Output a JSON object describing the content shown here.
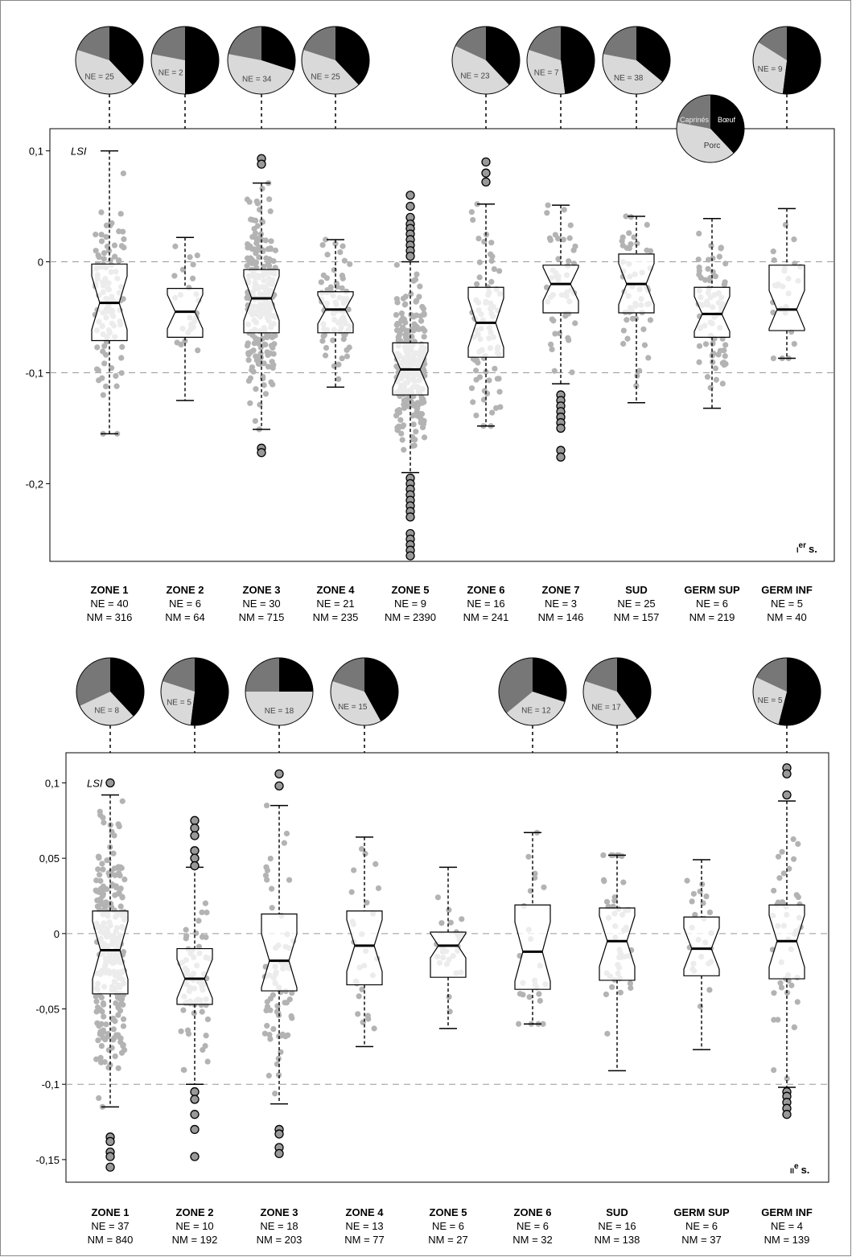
{
  "figure": {
    "label_axis": "LSI"
  },
  "pie_legend": {
    "labels": [
      "Caprinés",
      "Bœuf",
      "Porc"
    ]
  },
  "colors": {
    "caprines": "#777777",
    "boeuf": "#000000",
    "porc": "#d9d9d9",
    "points": "#b3b3b3",
    "box_fill": "#ffffff",
    "outlier_fill": "#999999",
    "grid": "#999999"
  },
  "chart_data": [
    {
      "type": "boxplot",
      "period_label": {
        "roman": "I",
        "suffix": "er",
        "text": "s."
      },
      "ylim": [
        -0.27,
        0.12
      ],
      "yticks": [
        0.1,
        0,
        -0.1,
        -0.2
      ],
      "ytick_labels": [
        "0,1",
        "0",
        "-0,1",
        "-0,2"
      ],
      "reference_lines": [
        0,
        -0.1
      ],
      "groups": [
        {
          "name": "ZONE 1",
          "ne": "NE = 40",
          "nm": "NM = 316",
          "whisker_low": -0.155,
          "q1": -0.071,
          "median": -0.037,
          "q3": -0.002,
          "whisker_high": 0.1,
          "outliers": [],
          "pie": {
            "caprines": 0.2,
            "boeuf": 0.38,
            "porc": 0.42,
            "label": "NE = 25"
          }
        },
        {
          "name": "ZONE 2",
          "ne": "NE = 6",
          "nm": "NM = 64",
          "whisker_low": -0.125,
          "q1": -0.068,
          "median": -0.045,
          "q3": -0.024,
          "whisker_high": 0.022,
          "outliers": [],
          "pie": {
            "caprines": 0.22,
            "boeuf": 0.5,
            "porc": 0.28,
            "label": "NE = 2"
          }
        },
        {
          "name": "ZONE 3",
          "ne": "NE = 30",
          "nm": "NM = 715",
          "whisker_low": -0.151,
          "q1": -0.064,
          "median": -0.033,
          "q3": -0.007,
          "whisker_high": 0.071,
          "outliers": [
            0.093,
            0.088,
            -0.168,
            -0.172
          ],
          "pie": {
            "caprines": 0.22,
            "boeuf": 0.3,
            "porc": 0.48,
            "label": "NE = 34"
          }
        },
        {
          "name": "ZONE 4",
          "ne": "NE = 21",
          "nm": "NM = 235",
          "whisker_low": -0.113,
          "q1": -0.064,
          "median": -0.043,
          "q3": -0.027,
          "whisker_high": 0.02,
          "outliers": [],
          "pie": {
            "caprines": 0.2,
            "boeuf": 0.38,
            "porc": 0.42,
            "label": "NE = 25"
          }
        },
        {
          "name": "ZONE 5",
          "ne": "NE = 9",
          "nm": "NM = 2390",
          "whisker_low": -0.19,
          "q1": -0.12,
          "median": -0.097,
          "q3": -0.073,
          "whisker_high": 0,
          "outliers": [
            0.06,
            0.05,
            0.04,
            0.034,
            0.03,
            0.025,
            0.02,
            0.015,
            0.01,
            0.005,
            -0.195,
            -0.2,
            -0.205,
            -0.21,
            -0.215,
            -0.22,
            -0.225,
            -0.23,
            -0.245,
            -0.25,
            -0.255,
            -0.26,
            -0.265
          ],
          "pie": null
        },
        {
          "name": "ZONE 6",
          "ne": "NE = 16",
          "nm": "NM = 241",
          "whisker_low": -0.148,
          "q1": -0.086,
          "median": -0.055,
          "q3": -0.023,
          "whisker_high": 0.052,
          "outliers": [
            0.09,
            0.08,
            0.072
          ],
          "pie": {
            "caprines": 0.18,
            "boeuf": 0.38,
            "porc": 0.44,
            "label": "NE = 23"
          }
        },
        {
          "name": "ZONE 7",
          "ne": "NE = 3",
          "nm": "NM = 146",
          "whisker_low": -0.11,
          "q1": -0.046,
          "median": -0.02,
          "q3": -0.003,
          "whisker_high": 0.051,
          "outliers": [
            -0.12,
            -0.125,
            -0.13,
            -0.135,
            -0.14,
            -0.145,
            -0.15,
            -0.17,
            -0.176
          ],
          "pie": {
            "caprines": 0.2,
            "boeuf": 0.48,
            "porc": 0.32,
            "label": "NE = 7"
          }
        },
        {
          "name": "SUD",
          "ne": "NE = 25",
          "nm": "NM = 157",
          "whisker_low": -0.127,
          "q1": -0.046,
          "median": -0.02,
          "q3": 0.007,
          "whisker_high": 0.041,
          "outliers": [],
          "pie": {
            "caprines": 0.22,
            "boeuf": 0.36,
            "porc": 0.42,
            "label": "NE = 38"
          }
        },
        {
          "name": "GERM SUP",
          "ne": "NE = 6",
          "nm": "NM = 219",
          "whisker_low": -0.132,
          "q1": -0.068,
          "median": -0.047,
          "q3": -0.023,
          "whisker_high": 0.039,
          "outliers": [],
          "pie": null
        },
        {
          "name": "GERM INF",
          "ne": "NE = 5",
          "nm": "NM = 40",
          "whisker_low": -0.087,
          "q1": -0.062,
          "median": -0.043,
          "q3": -0.003,
          "whisker_high": 0.048,
          "outliers": [],
          "pie": {
            "caprines": 0.16,
            "boeuf": 0.52,
            "porc": 0.32,
            "label": "NE = 9"
          }
        }
      ]
    },
    {
      "type": "boxplot",
      "period_label": {
        "roman": "II",
        "suffix": "e",
        "text": "s."
      },
      "ylim": [
        -0.165,
        0.12
      ],
      "yticks": [
        0.1,
        0.05,
        0,
        -0.05,
        -0.1,
        -0.15
      ],
      "ytick_labels": [
        "0,1",
        "0,05",
        "0",
        "-0,05",
        "-0,1",
        "-0,15"
      ],
      "reference_lines": [
        0,
        -0.1
      ],
      "groups": [
        {
          "name": "ZONE 1",
          "ne": "NE = 37",
          "nm": "NM = 840",
          "whisker_low": -0.115,
          "q1": -0.04,
          "median": -0.011,
          "q3": 0.015,
          "whisker_high": 0.092,
          "outliers": [
            0.1,
            -0.135,
            -0.138,
            -0.145,
            -0.148,
            -0.155
          ],
          "pie": {
            "caprines": 0.32,
            "boeuf": 0.38,
            "porc": 0.3,
            "label": "NE = 8"
          }
        },
        {
          "name": "ZONE 2",
          "ne": "NE = 10",
          "nm": "NM = 192",
          "whisker_low": -0.1,
          "q1": -0.047,
          "median": -0.03,
          "q3": -0.01,
          "whisker_high": 0.044,
          "outliers": [
            0.075,
            0.07,
            0.065,
            0.055,
            0.05,
            0.045,
            -0.105,
            -0.11,
            -0.12,
            -0.13,
            -0.148
          ],
          "pie": {
            "caprines": 0.2,
            "boeuf": 0.52,
            "porc": 0.28,
            "label": "NE = 5"
          }
        },
        {
          "name": "ZONE 3",
          "ne": "NE = 18",
          "nm": "NM = 203",
          "whisker_low": -0.113,
          "q1": -0.038,
          "median": -0.018,
          "q3": 0.013,
          "whisker_high": 0.085,
          "outliers": [
            0.106,
            0.098,
            -0.13,
            -0.133,
            -0.142,
            -0.146
          ],
          "pie": {
            "caprines": 0.25,
            "boeuf": 0.25,
            "porc": 0.5,
            "label": "NE = 18"
          }
        },
        {
          "name": "ZONE 4",
          "ne": "NE = 13",
          "nm": "NM = 77",
          "whisker_low": -0.075,
          "q1": -0.034,
          "median": -0.008,
          "q3": 0.015,
          "whisker_high": 0.064,
          "outliers": [],
          "pie": {
            "caprines": 0.2,
            "boeuf": 0.42,
            "porc": 0.38,
            "label": "NE = 15"
          }
        },
        {
          "name": "ZONE 5",
          "ne": "NE = 6",
          "nm": "NM = 27",
          "whisker_low": -0.063,
          "q1": -0.029,
          "median": -0.008,
          "q3": 0.001,
          "whisker_high": 0.044,
          "outliers": [],
          "pie": null
        },
        {
          "name": "ZONE 6",
          "ne": "NE = 6",
          "nm": "NM = 32",
          "whisker_low": -0.06,
          "q1": -0.037,
          "median": -0.012,
          "q3": 0.019,
          "whisker_high": 0.067,
          "outliers": [],
          "pie": {
            "caprines": 0.36,
            "boeuf": 0.3,
            "porc": 0.34,
            "label": "NE = 12"
          }
        },
        {
          "name": "SUD",
          "ne": "NE = 16",
          "nm": "NM = 138",
          "whisker_low": -0.091,
          "q1": -0.031,
          "median": -0.005,
          "q3": 0.017,
          "whisker_high": 0.052,
          "outliers": [],
          "pie": {
            "caprines": 0.2,
            "boeuf": 0.4,
            "porc": 0.4,
            "label": "NE = 17"
          }
        },
        {
          "name": "GERM SUP",
          "ne": "NE = 6",
          "nm": "NM = 37",
          "whisker_low": -0.077,
          "q1": -0.028,
          "median": -0.01,
          "q3": 0.011,
          "whisker_high": 0.049,
          "outliers": [],
          "pie": null
        },
        {
          "name": "GERM INF",
          "ne": "NE = 4",
          "nm": "NM = 139",
          "whisker_low": -0.102,
          "q1": -0.03,
          "median": -0.005,
          "q3": 0.019,
          "whisker_high": 0.088,
          "outliers": [
            0.11,
            0.106,
            0.092,
            -0.105,
            -0.108,
            -0.112,
            -0.116,
            -0.12
          ],
          "pie": {
            "caprines": 0.18,
            "boeuf": 0.54,
            "porc": 0.28,
            "label": "NE = 5"
          }
        }
      ]
    }
  ]
}
